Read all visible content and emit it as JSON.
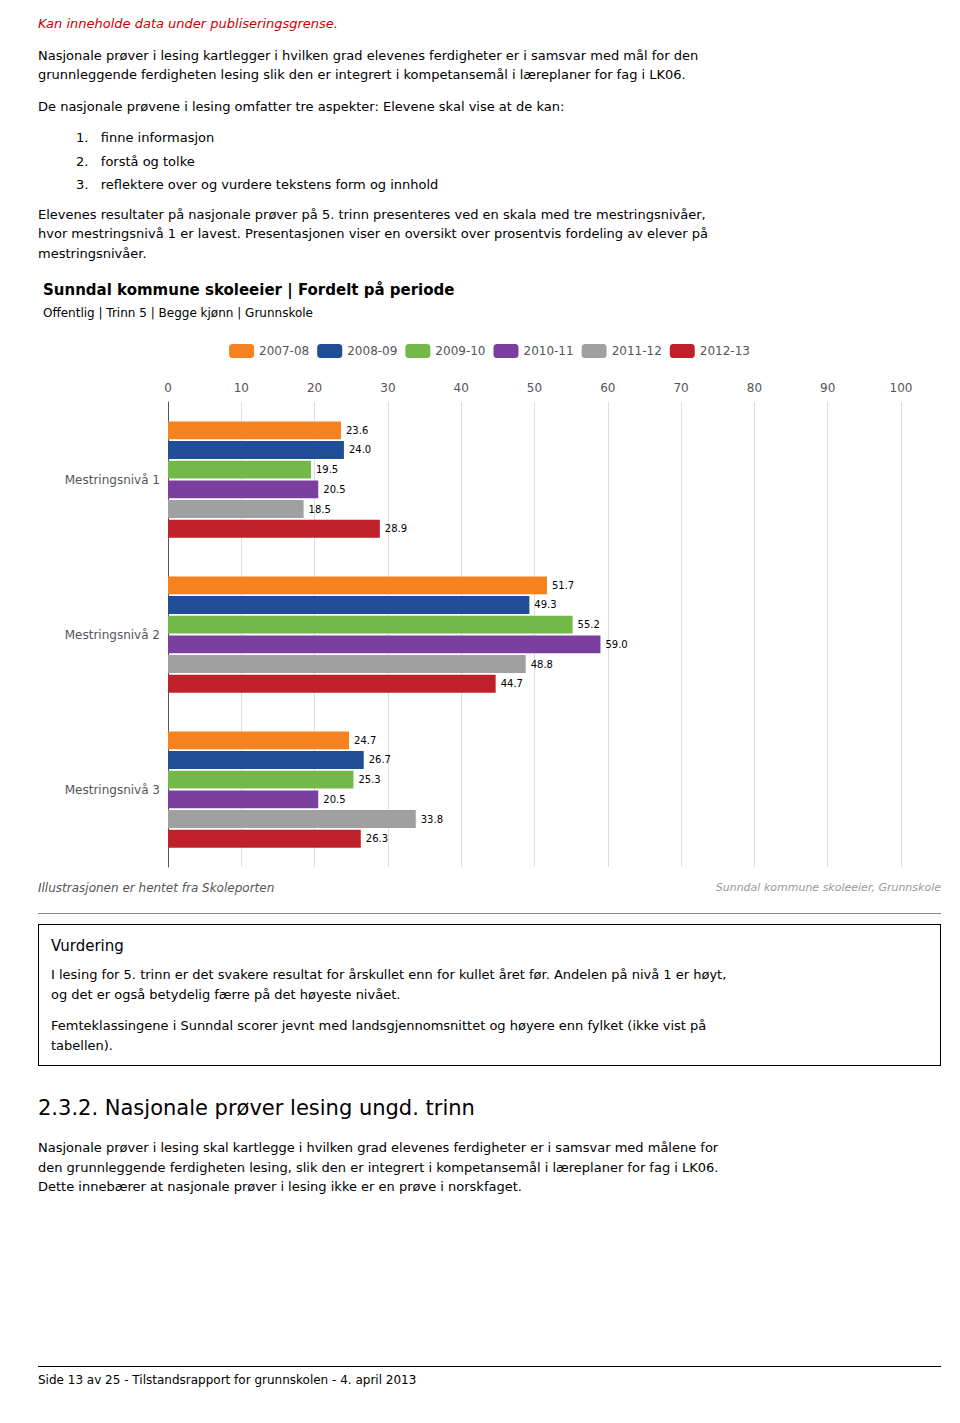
{
  "page_texts": {
    "top_red_text": "Kan inneholde data under publiseringsgrense.",
    "para1": "Nasjonale prøver i lesing kartlegger i hvilken grad elevenes ferdigheter er i samsvar med mål for den\ngrunnleggende ferdigheten lesing slik den er integrert i kompetansemål i læreplaner for fag i LK06.",
    "para2": "De nasjonale prøvene i lesing omfatter tre aspekter:  Elevene skal vise at de kan:",
    "list_items": [
      "1.   finne informasjon",
      "2.   forstå og tolke",
      "3.   reflektere over og vurdere tekstens form og innhold"
    ],
    "para3": "Elevenes resultater på nasjonale prøver på 5. trinn presenteres ved en skala med tre mestringsnivåer,\nhvor mestringsnivå 1 er lavest. Presentasjonen viser en oversikt over prosentvis fordeling av elever på\nmestringsnivåer.",
    "vurdering_title": "Vurdering",
    "vurdering_text1": "I lesing for 5. trinn er det svakere resultat for årskullet enn for kullet året før. Andelen på nivå 1 er høyt,\nog det er også betydelig færre på det høyeste nivået.",
    "vurdering_text2": "Femteklassingene i Sunndal scorer jevnt med landsgjennomsnittet og høyere enn fylket (ikke vist på\ntabellen).",
    "section_title": "2.3.2.  Nasjonale prøver lesing ungd. trinn",
    "section_para1": "Nasjonale prøver i lesing skal kartlegge i hvilken grad elevenes ferdigheter er i samsvar med målene for\nden grunnleggende ferdigheten lesing, slik den er integrert i kompetansemål i læreplaner for fag i LK06.\nDette innebærer at nasjonale prøver i lesing ikke er en prøve i norskfaget.",
    "footer_text": "Side 13 av 25 - Tilstandsrapport for grunnskolen - 4. april 2013"
  },
  "chart_data": {
    "type": "bar",
    "orientation": "horizontal",
    "title": "Sunndal kommune skoleeier | Fordelt på periode",
    "subtitle": "Offentlig | Trinn 5 | Begge kjønn | Grunnskole",
    "categories": [
      "Mestringsnivå 1",
      "Mestringsnivå 2",
      "Mestringsnivå 3"
    ],
    "series": [
      {
        "name": "2007-08",
        "color": "#F5821E",
        "values": [
          23.6,
          51.7,
          24.7
        ]
      },
      {
        "name": "2008-09",
        "color": "#1F4E96",
        "values": [
          24.0,
          49.3,
          26.7
        ],
        "value_labels": [
          "24.0",
          "49.3",
          "26.7"
        ]
      },
      {
        "name": "2009-10",
        "color": "#72B94A",
        "values": [
          19.5,
          55.2,
          25.3
        ]
      },
      {
        "name": "2010-11",
        "color": "#7B3F9E",
        "values": [
          20.5,
          59.0,
          20.5
        ],
        "value_labels": [
          "20.5",
          "59.0",
          "20.5"
        ]
      },
      {
        "name": "2011-12",
        "color": "#A0A0A0",
        "values": [
          18.5,
          48.8,
          33.8
        ]
      },
      {
        "name": "2012-13",
        "color": "#C0202A",
        "values": [
          28.9,
          44.7,
          26.3
        ]
      }
    ],
    "xlim": [
      0,
      100
    ],
    "xticks": [
      0,
      10,
      20,
      30,
      40,
      50,
      60,
      70,
      80,
      90,
      100
    ],
    "grid": true,
    "data_labels": true,
    "legend": "top",
    "annotations": [
      "Illustrasjonen er hentet fra Skoleporten",
      "Sunndal kommune skoleeier, Grunnskole"
    ]
  }
}
